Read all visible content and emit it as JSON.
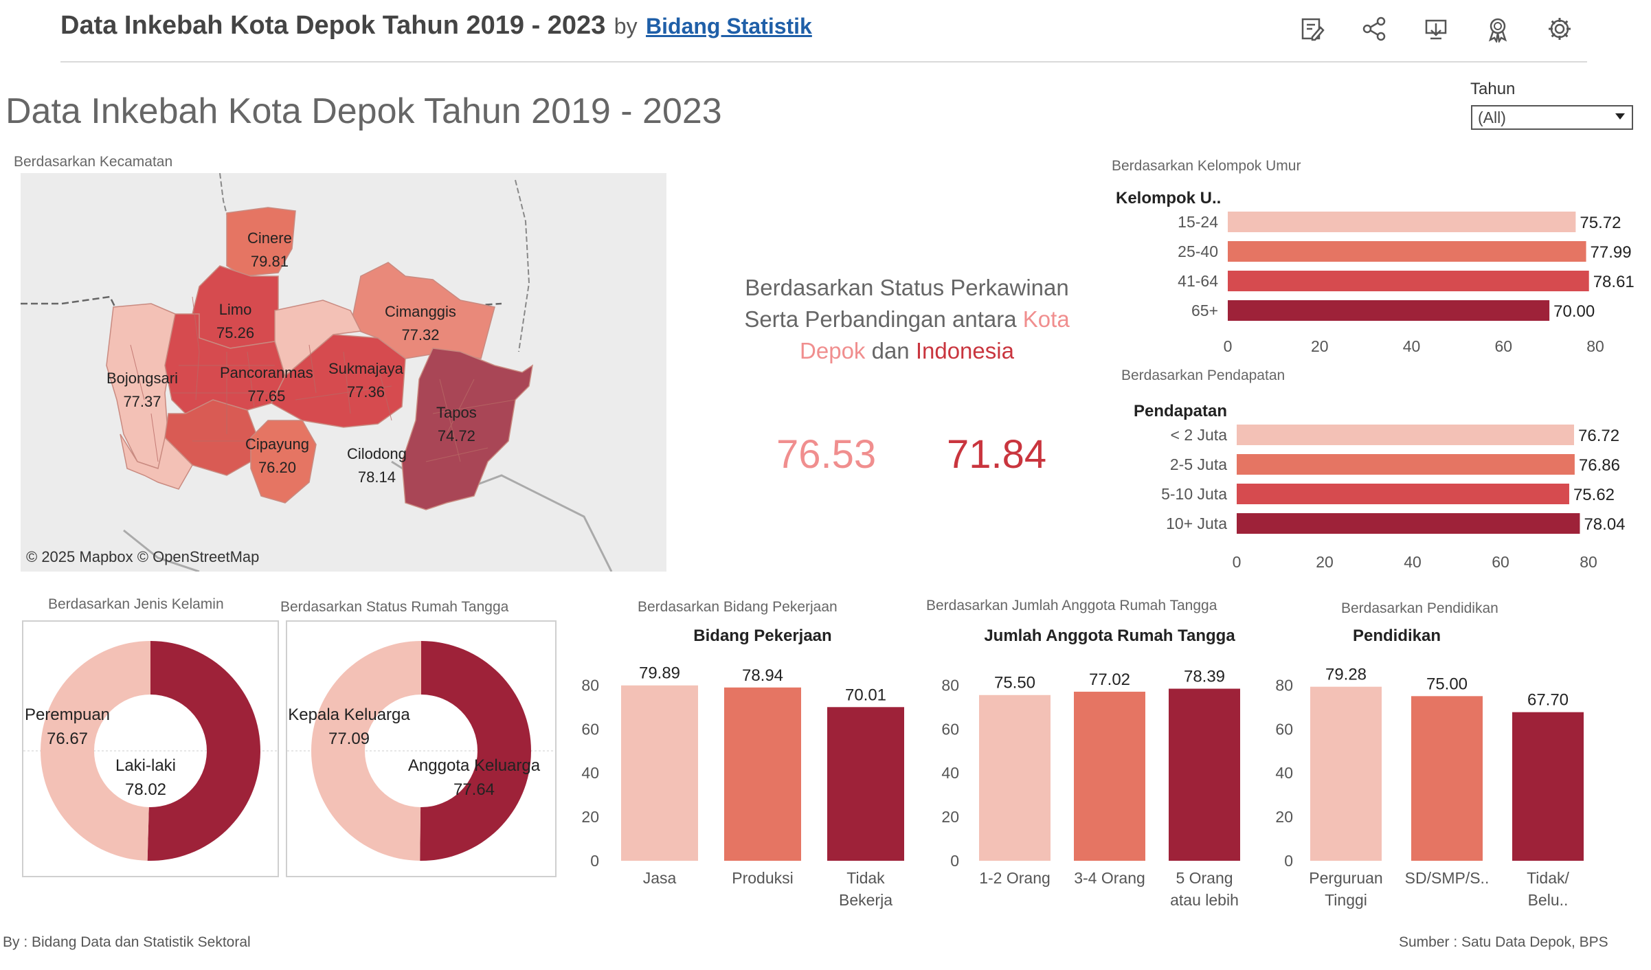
{
  "header": {
    "title": "Data Inkebah Kota Depok Tahun 2019 - 2023",
    "by": "by",
    "author": "Bidang Statistik"
  },
  "page_title": "Data Inkebah Kota Depok Tahun 2019 - 2023",
  "filter": {
    "label": "Tahun",
    "value": "(All)"
  },
  "icons": [
    "edit-icon",
    "share-icon",
    "download-icon",
    "award-icon",
    "settings-icon"
  ],
  "colors": {
    "c1": "#f3c1b6",
    "c2": "#e57563",
    "c3": "#d64b4f",
    "c4": "#9e2239",
    "kota": "#f08e8e",
    "indonesia": "#c9353e"
  },
  "map": {
    "title": "Berdasarkan Kecamatan",
    "credit": "© 2025 Mapbox  © OpenStreetMap",
    "districts": [
      {
        "name": "Cinere",
        "value": "79.81"
      },
      {
        "name": "Limo",
        "value": "75.26"
      },
      {
        "name": "Cimanggis",
        "value": "77.32"
      },
      {
        "name": "Bojongsari",
        "value": "77.37"
      },
      {
        "name": "Pancoranmas",
        "value": "77.65"
      },
      {
        "name": "Sukmajaya",
        "value": "77.36"
      },
      {
        "name": "Tapos",
        "value": "74.72"
      },
      {
        "name": "Cipayung",
        "value": "76.20"
      },
      {
        "name": "Cilodong",
        "value": "78.14"
      }
    ]
  },
  "kpi": {
    "title_line1": "Berdasarkan Status Perkawinan",
    "title_line2a": "Serta Perbandingan antara ",
    "kota_line2": "Kota",
    "kota_line3": "Depok",
    "dan": " dan ",
    "indonesia": "Indonesia",
    "kota_value": "76.53",
    "indonesia_value": "71.84"
  },
  "footer": {
    "left": "By : Bidang Data dan Statistik Sektoral",
    "right": "Sumber : Satu Data Depok, BPS"
  },
  "chart_data": [
    {
      "id": "umur",
      "type": "bar",
      "orientation": "horizontal",
      "title": "Berdasarkan Kelompok Umur",
      "header": "Kelompok U..",
      "categories": [
        "15-24",
        "25-40",
        "41-64",
        "65+"
      ],
      "values": [
        75.72,
        77.99,
        78.61,
        70.0
      ],
      "labels": [
        "75.72",
        "77.99",
        "78.61",
        "70.00"
      ],
      "xlim": [
        0,
        80
      ],
      "ticks": [
        "0",
        "20",
        "40",
        "60",
        "80"
      ]
    },
    {
      "id": "pendapatan",
      "type": "bar",
      "orientation": "horizontal",
      "title": "Berdasarkan Pendapatan",
      "header": "Pendapatan",
      "categories": [
        "< 2 Juta",
        "2-5 Juta",
        "5-10 Juta",
        "10+ Juta"
      ],
      "values": [
        76.72,
        76.86,
        75.62,
        78.04
      ],
      "labels": [
        "76.72",
        "76.86",
        "75.62",
        "78.04"
      ],
      "xlim": [
        0,
        80
      ],
      "ticks": [
        "0",
        "20",
        "40",
        "60",
        "80"
      ]
    },
    {
      "id": "kelamin",
      "type": "pie",
      "title": "Berdasarkan Jenis Kelamin",
      "slices": [
        {
          "label": "Perempuan",
          "value": 76.67,
          "text": "76.67"
        },
        {
          "label": "Laki-laki",
          "value": 78.02,
          "text": "78.02"
        }
      ]
    },
    {
      "id": "rumahtangga",
      "type": "pie",
      "title": "Berdasarkan Status Rumah Tangga",
      "slices": [
        {
          "label": "Kepala Keluarga",
          "value": 77.09,
          "text": "77.09"
        },
        {
          "label": "Anggota Keluarga",
          "value": 77.64,
          "text": "77.64"
        }
      ]
    },
    {
      "id": "pekerjaan",
      "type": "bar",
      "orientation": "vertical",
      "title": "Berdasarkan Bidang Pekerjaan",
      "header": "Bidang Pekerjaan",
      "categories": [
        [
          "Jasa"
        ],
        [
          "Produksi"
        ],
        [
          "Tidak",
          "Bekerja"
        ]
      ],
      "values": [
        79.89,
        78.94,
        70.01
      ],
      "labels": [
        "79.89",
        "78.94",
        "70.01"
      ],
      "ylim": [
        0,
        87
      ],
      "ticks": [
        "0",
        "20",
        "40",
        "60",
        "80"
      ]
    },
    {
      "id": "anggota",
      "type": "bar",
      "orientation": "vertical",
      "title": "Berdasarkan Jumlah Anggota Rumah Tangga",
      "header": "Jumlah Anggota Rumah Tangga",
      "categories": [
        [
          "1-2 Orang"
        ],
        [
          "3-4 Orang"
        ],
        [
          "5 Orang",
          "atau lebih"
        ]
      ],
      "values": [
        75.5,
        77.02,
        78.39
      ],
      "labels": [
        "75.50",
        "77.02",
        "78.39"
      ],
      "ylim": [
        0,
        87
      ],
      "ticks": [
        "0",
        "20",
        "40",
        "60",
        "80"
      ]
    },
    {
      "id": "pendidikan",
      "type": "bar",
      "orientation": "vertical",
      "title": "Berdasarkan Pendidikan",
      "header": "Pendidikan",
      "categories": [
        [
          "Perguruan",
          "Tinggi"
        ],
        [
          "SD/SMP/S.."
        ],
        [
          "Tidak/",
          "Belu.."
        ]
      ],
      "values": [
        79.28,
        75.0,
        67.7
      ],
      "labels": [
        "79.28",
        "75.00",
        "67.70"
      ],
      "ylim": [
        0,
        87
      ],
      "ticks": [
        "0",
        "20",
        "40",
        "60",
        "80"
      ]
    }
  ]
}
